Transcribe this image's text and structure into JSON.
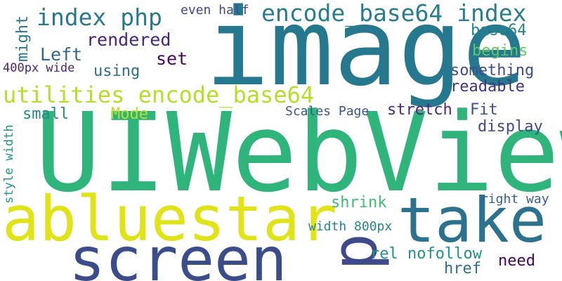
{
  "words": [
    {
      "text": "UIWebView",
      "color": "#2fb47c"
    },
    {
      "text": "image",
      "color": "#25788e"
    },
    {
      "text": "abluestar",
      "color": "#dfe318"
    },
    {
      "text": "screen",
      "color": "#3a4c8a"
    },
    {
      "text": "take",
      "color": "#2c728e"
    },
    {
      "text": "p",
      "color": "#3e4a89"
    },
    {
      "text": "utilities encode_base64",
      "color": "#b5de2b"
    },
    {
      "text": "encode_base64 index",
      "color": "#287c8e"
    },
    {
      "text": "index php",
      "color": "#2a788e"
    },
    {
      "text": "rendered",
      "color": "#482576"
    },
    {
      "text": "Left",
      "color": "#31688e"
    },
    {
      "text": "set",
      "color": "#46085c"
    },
    {
      "text": "using",
      "color": "#2e6d8e"
    },
    {
      "text": "Mode",
      "color": "#bddf26"
    },
    {
      "text": "small",
      "color": "#23898e"
    },
    {
      "text": "Scales Page",
      "color": "#39568c"
    },
    {
      "text": "stretch",
      "color": "#482878"
    },
    {
      "text": "Fit",
      "color": "#3b528b"
    },
    {
      "text": "display",
      "color": "#3e4c8a"
    },
    {
      "text": "something",
      "color": "#3e4c8a"
    },
    {
      "text": "readable",
      "color": "#46337f"
    },
    {
      "text": "base64",
      "color": "#25838e"
    },
    {
      "text": "begins",
      "color": "#5ec962"
    },
    {
      "text": "even half",
      "color": "#404688"
    },
    {
      "text": "400px wide",
      "color": "#482374"
    },
    {
      "text": "might",
      "color": "#2a788e"
    },
    {
      "text": "style width",
      "color": "#20928c"
    },
    {
      "text": "shrink",
      "color": "#3fbc73"
    },
    {
      "text": "right way",
      "color": "#355f8d"
    },
    {
      "text": "width 800px",
      "color": "#25858e"
    },
    {
      "text": "rel nofollow",
      "color": "#21918c"
    },
    {
      "text": "need",
      "color": "#450457"
    },
    {
      "text": "href",
      "color": "#2e6e8e"
    }
  ]
}
